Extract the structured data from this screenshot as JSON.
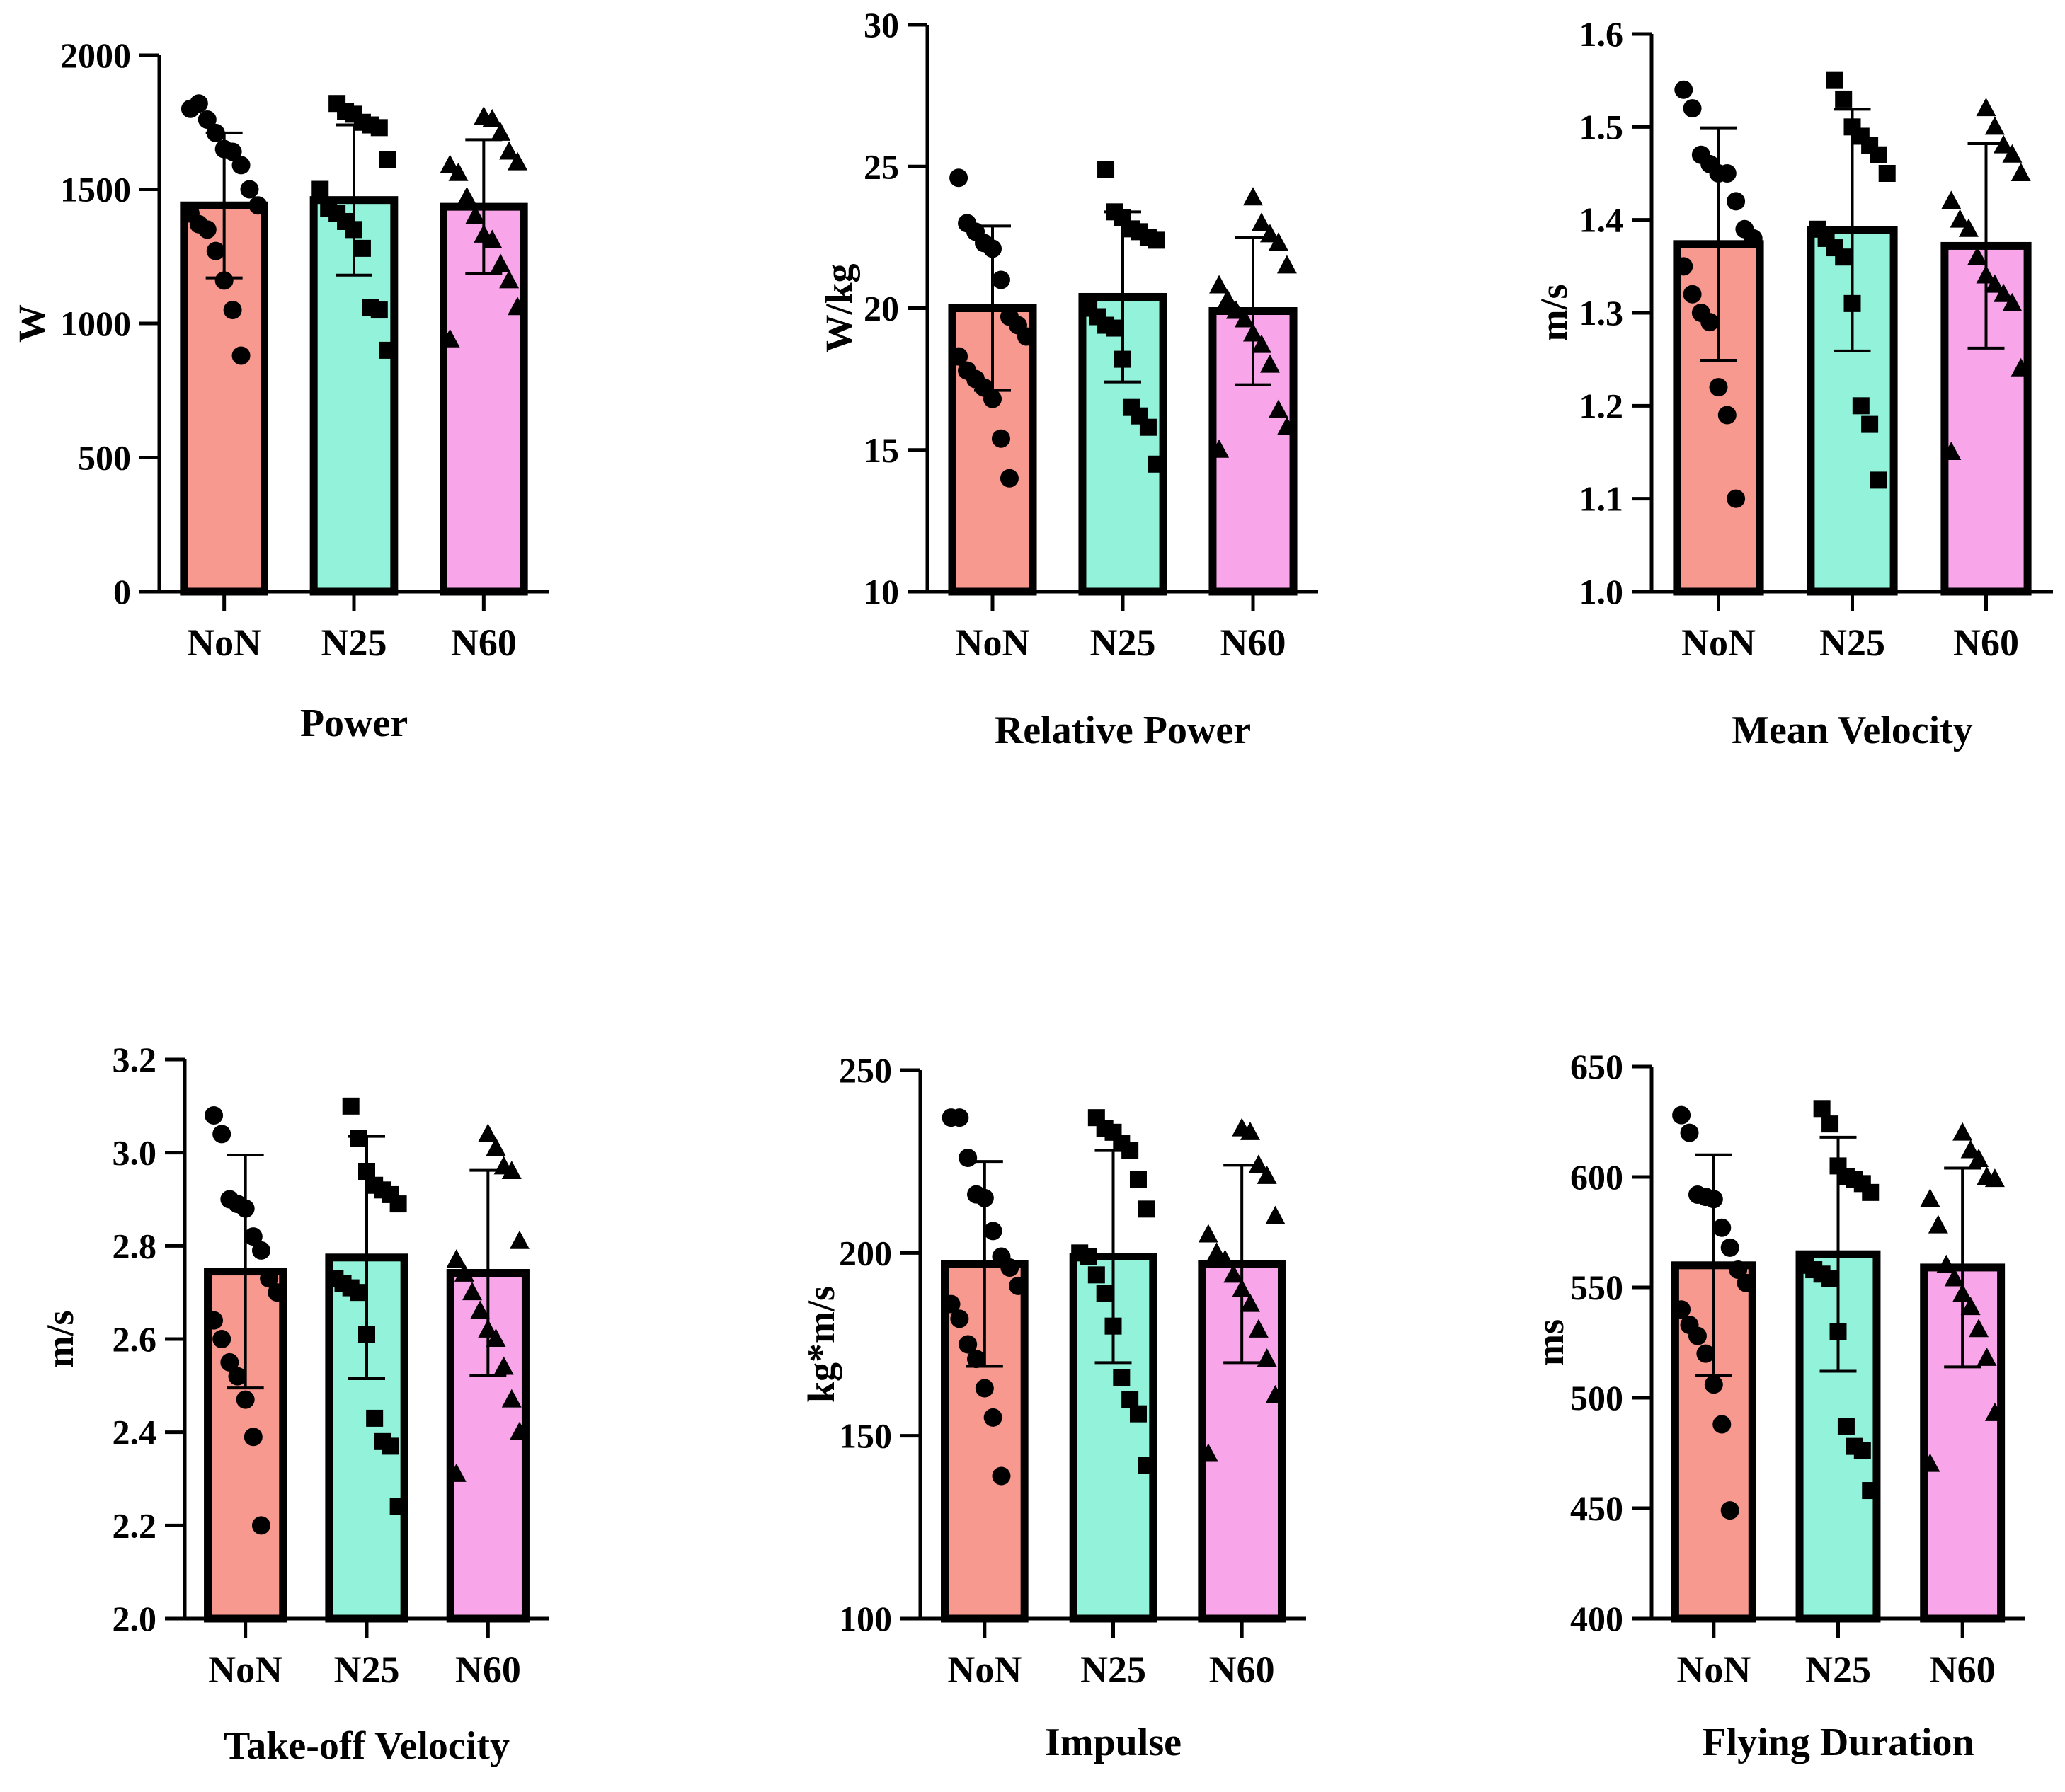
{
  "figure": {
    "layout": "2 rows x 3 columns"
  },
  "colors": {
    "NoN": "#f7998e",
    "N25": "#92f3da",
    "N60": "#f8a5ea",
    "ink": "#000000"
  },
  "chart_data": [
    {
      "type": "bar",
      "title": "Power",
      "xlabel": "Power",
      "ylabel": "W",
      "categories": [
        "NoN",
        "N25",
        "N60"
      ],
      "ylim": [
        0,
        2000
      ],
      "yticks": [
        0,
        500,
        1000,
        1500,
        2000
      ],
      "tick_labels": [
        "0",
        "500",
        "1000",
        "1500",
        "2000"
      ],
      "means": [
        1440,
        1460,
        1435
      ],
      "sd": [
        270,
        280,
        250
      ],
      "markers": [
        "circle",
        "square",
        "triangle"
      ],
      "points": [
        [
          1800,
          1820,
          1760,
          1710,
          1650,
          1640,
          1590,
          1500,
          1440,
          1410,
          1370,
          1350,
          1270,
          1160,
          1050,
          880
        ],
        [
          1820,
          1790,
          1780,
          1750,
          1740,
          1730,
          1610,
          1500,
          1430,
          1410,
          1380,
          1350,
          1280,
          1060,
          1050,
          900
        ],
        [
          1770,
          1760,
          1710,
          1640,
          1600,
          1590,
          1560,
          1470,
          1400,
          1330,
          1310,
          1220,
          1160,
          1060,
          940
        ]
      ]
    },
    {
      "type": "bar",
      "title": "Relative Power",
      "xlabel": "Relative Power",
      "ylabel": "W/kg",
      "categories": [
        "NoN",
        "N25",
        "N60"
      ],
      "ylim": [
        10,
        30
      ],
      "yticks": [
        10,
        15,
        20,
        25,
        30
      ],
      "tick_labels": [
        "10",
        "15",
        "20",
        "25",
        "30"
      ],
      "means": [
        20.0,
        20.4,
        19.9
      ],
      "sd": [
        2.9,
        3.0,
        2.6
      ],
      "markers": [
        "circle",
        "square",
        "triangle"
      ],
      "points": [
        [
          24.6,
          23.0,
          22.7,
          22.3,
          22.1,
          21.0,
          19.7,
          19.4,
          19.0,
          18.3,
          17.8,
          17.5,
          17.2,
          16.8,
          15.4,
          14.0
        ],
        [
          24.9,
          23.4,
          23.2,
          22.8,
          22.7,
          22.5,
          22.4,
          20.0,
          19.7,
          19.4,
          19.3,
          18.2,
          16.5,
          16.2,
          15.8,
          14.5
        ],
        [
          23.9,
          23.0,
          22.6,
          22.3,
          21.5,
          20.8,
          20.3,
          19.9,
          19.6,
          19.1,
          18.7,
          18.0,
          16.4,
          15.8,
          15.0
        ]
      ]
    },
    {
      "type": "bar",
      "title": "Mean Velocity",
      "xlabel": "Mean Velocity",
      "ylabel": "m/s",
      "categories": [
        "NoN",
        "N25",
        "N60"
      ],
      "ylim": [
        1.0,
        1.6
      ],
      "yticks": [
        1.0,
        1.1,
        1.2,
        1.3,
        1.4,
        1.5,
        1.6
      ],
      "tick_labels": [
        "1.0",
        "1.1",
        "1.2",
        "1.3",
        "1.4",
        "1.5",
        "1.6"
      ],
      "means": [
        1.374,
        1.389,
        1.372
      ],
      "sd": [
        0.125,
        0.13,
        0.11
      ],
      "markers": [
        "circle",
        "square",
        "triangle"
      ],
      "points": [
        [
          1.54,
          1.52,
          1.47,
          1.46,
          1.45,
          1.45,
          1.42,
          1.39,
          1.38,
          1.35,
          1.32,
          1.3,
          1.29,
          1.22,
          1.19,
          1.1
        ],
        [
          1.55,
          1.53,
          1.5,
          1.49,
          1.48,
          1.47,
          1.45,
          1.39,
          1.38,
          1.37,
          1.36,
          1.31,
          1.2,
          1.18,
          1.12
        ],
        [
          1.52,
          1.5,
          1.48,
          1.47,
          1.45,
          1.42,
          1.4,
          1.39,
          1.36,
          1.34,
          1.33,
          1.32,
          1.31,
          1.24,
          1.15
        ]
      ]
    },
    {
      "type": "bar",
      "title": "Take-off Velocity",
      "xlabel": "Take-off Velocity",
      "ylabel": "m/s",
      "categories": [
        "NoN",
        "N25",
        "N60"
      ],
      "ylim": [
        2.0,
        3.2
      ],
      "yticks": [
        2.0,
        2.2,
        2.4,
        2.6,
        2.8,
        3.0,
        3.2
      ],
      "tick_labels": [
        "2.0",
        "2.2",
        "2.4",
        "2.6",
        "2.8",
        "3.0",
        "3.2"
      ],
      "means": [
        2.745,
        2.775,
        2.742
      ],
      "sd": [
        0.25,
        0.26,
        0.22
      ],
      "markers": [
        "circle",
        "square",
        "triangle"
      ],
      "points": [
        [
          3.08,
          3.04,
          2.9,
          2.89,
          2.88,
          2.82,
          2.79,
          2.73,
          2.7,
          2.64,
          2.6,
          2.55,
          2.52,
          2.47,
          2.39,
          2.2
        ],
        [
          3.1,
          3.03,
          2.96,
          2.93,
          2.92,
          2.91,
          2.89,
          2.73,
          2.72,
          2.71,
          2.7,
          2.61,
          2.43,
          2.38,
          2.37,
          2.24
        ],
        [
          3.04,
          3.01,
          2.97,
          2.96,
          2.81,
          2.77,
          2.74,
          2.7,
          2.66,
          2.62,
          2.6,
          2.54,
          2.47,
          2.4,
          2.31
        ]
      ]
    },
    {
      "type": "bar",
      "title": "Impulse",
      "xlabel": "Impulse",
      "ylabel": "kg*m/s",
      "categories": [
        "NoN",
        "N25",
        "N60"
      ],
      "ylim": [
        100,
        250
      ],
      "yticks": [
        100,
        150,
        200,
        250
      ],
      "tick_labels": [
        "100",
        "150",
        "200",
        "250"
      ],
      "means": [
        197,
        199,
        197
      ],
      "sd": [
        28,
        29,
        27
      ],
      "markers": [
        "circle",
        "square",
        "triangle"
      ],
      "points": [
        [
          237,
          237,
          226,
          216,
          215,
          206,
          199,
          196,
          191,
          186,
          182,
          175,
          171,
          163,
          155,
          139
        ],
        [
          237,
          234,
          233,
          230,
          228,
          220,
          212,
          200,
          199,
          194,
          189,
          180,
          166,
          160,
          156,
          142
        ],
        [
          234,
          233,
          224,
          221,
          210,
          205,
          200,
          198,
          194,
          190,
          186,
          179,
          171,
          161,
          145
        ]
      ]
    },
    {
      "type": "bar",
      "title": "Flying Duration",
      "xlabel": "Flying Duration",
      "ylabel": "ms",
      "categories": [
        "NoN",
        "N25",
        "N60"
      ],
      "ylim": [
        400,
        650
      ],
      "yticks": [
        400,
        450,
        500,
        550,
        600,
        650
      ],
      "tick_labels": [
        "400",
        "450",
        "500",
        "550",
        "600",
        "650"
      ],
      "means": [
        560,
        565,
        559
      ],
      "sd": [
        50,
        53,
        45
      ],
      "markers": [
        "circle",
        "square",
        "triangle"
      ],
      "points": [
        [
          628,
          620,
          592,
          591,
          590,
          577,
          568,
          558,
          552,
          540,
          533,
          528,
          520,
          506,
          488,
          449
        ],
        [
          631,
          624,
          605,
          600,
          599,
          597,
          593,
          560,
          558,
          556,
          554,
          530,
          487,
          478,
          476,
          458
        ],
        [
          620,
          612,
          608,
          600,
          599,
          590,
          578,
          560,
          554,
          547,
          541,
          531,
          518,
          493,
          470
        ]
      ]
    }
  ]
}
